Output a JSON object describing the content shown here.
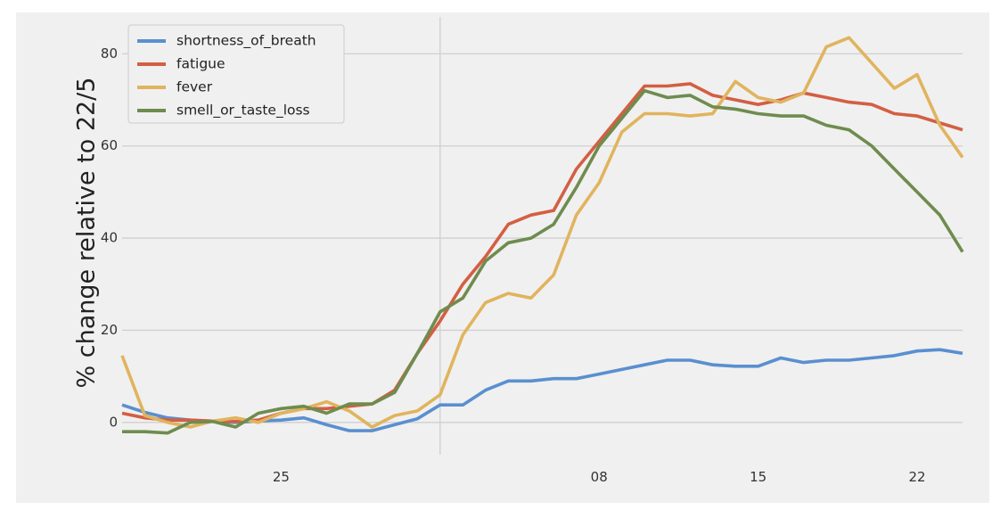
{
  "chart_data": {
    "type": "line",
    "title": "",
    "xlabel": "",
    "ylabel": "% change relative to 22/5",
    "x_ticks": [
      "25",
      "08",
      "15",
      "22"
    ],
    "y_ticks": [
      "0",
      "20",
      "40",
      "60",
      "80"
    ],
    "ylim": [
      -7,
      88
    ],
    "grid": true,
    "legend_position": "top-left",
    "series": [
      {
        "name": "shortness_of_breath",
        "color": "#5a8fd0",
        "values": [
          3.8,
          2.2,
          1.0,
          0.5,
          0.2,
          0.0,
          0.3,
          0.5,
          1.0,
          -0.5,
          -1.8,
          -1.8,
          -0.5,
          0.8,
          3.8,
          3.8,
          7.0,
          9.0,
          9.0,
          9.5,
          9.5,
          10.5,
          11.5,
          12.5,
          13.5,
          13.5,
          12.5,
          12.2,
          12.2,
          14.0,
          13.0,
          13.5,
          13.5,
          14.0,
          14.5,
          15.5,
          15.8,
          15.0
        ]
      },
      {
        "name": "fatigue",
        "color": "#d35f43",
        "values": [
          2.0,
          1.0,
          0.5,
          0.5,
          0.3,
          0.2,
          0.5,
          2.0,
          3.0,
          3.0,
          3.5,
          4.0,
          7.0,
          15.0,
          22.0,
          30.0,
          36.0,
          43.0,
          45.0,
          46.0,
          55.0,
          61.0,
          67.0,
          73.0,
          73.0,
          73.5,
          71.0,
          70.0,
          69.0,
          70.0,
          71.5,
          70.5,
          69.5,
          69.0,
          67.0,
          66.5,
          65.0,
          63.5
        ]
      },
      {
        "name": "fever",
        "color": "#e0b45e",
        "values": [
          14.5,
          1.5,
          0.0,
          -1.0,
          0.3,
          1.0,
          0.0,
          2.0,
          3.0,
          4.5,
          2.5,
          -1.0,
          1.5,
          2.5,
          6.0,
          19.0,
          26.0,
          28.0,
          27.0,
          32.0,
          45.0,
          52.0,
          63.0,
          67.0,
          67.0,
          66.5,
          67.0,
          74.0,
          70.5,
          69.5,
          71.5,
          81.5,
          83.5,
          78.0,
          72.5,
          75.5,
          64.5,
          57.5
        ]
      },
      {
        "name": "smell_or_taste_loss",
        "color": "#6e8c4e",
        "values": [
          -2.0,
          -2.0,
          -2.3,
          0.0,
          0.2,
          -1.0,
          2.0,
          3.0,
          3.5,
          2.0,
          4.0,
          4.0,
          6.5,
          15.0,
          24.0,
          27.0,
          35.0,
          39.0,
          40.0,
          43.0,
          51.0,
          60.0,
          66.0,
          72.0,
          70.5,
          71.0,
          68.5,
          68.0,
          67.0,
          66.5,
          66.5,
          64.5,
          63.5,
          60.0,
          55.0,
          50.0,
          45.0,
          37.0
        ]
      }
    ]
  }
}
